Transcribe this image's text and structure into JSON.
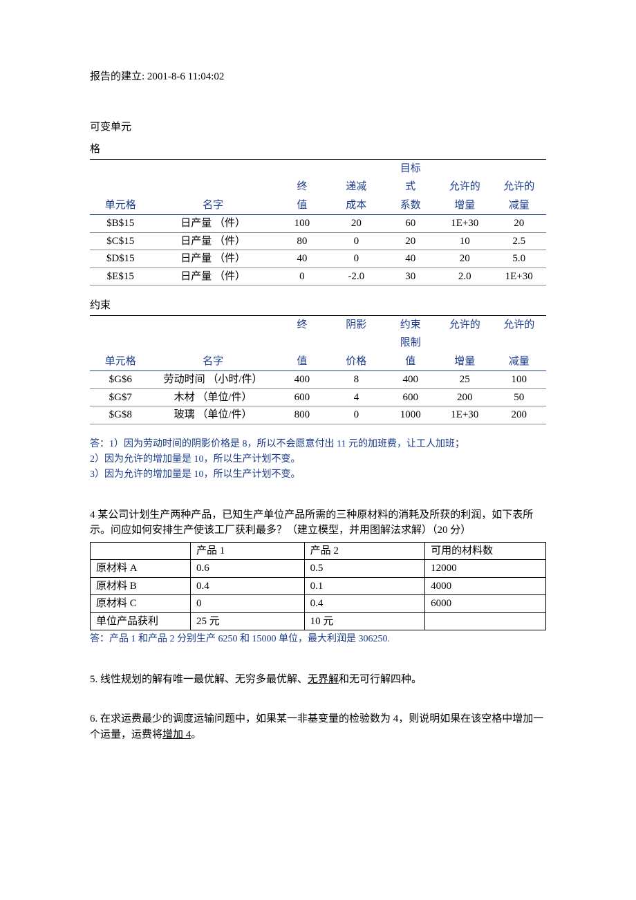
{
  "report_header": "报告的建立: 2001-8-6 11:04:02",
  "section1": {
    "label_line1": "可变单元",
    "label_line2": "格",
    "headers": {
      "cell": "单元格",
      "name": "名字",
      "final_val_l1": "终",
      "final_val_l2": "值",
      "reduced_l1": "递减",
      "reduced_l2": "成本",
      "obj_l1": "目标",
      "obj_l2": "式",
      "obj_l3": "系数",
      "allow_inc_l1": "允许的",
      "allow_inc_l2": "增量",
      "allow_dec_l1": "允许的",
      "allow_dec_l2": "减量"
    },
    "rows": [
      {
        "cell": "$B$15",
        "name": "日产量 （件）",
        "final": "100",
        "reduced": "20",
        "obj": "60",
        "inc": "1E+30",
        "dec": "20"
      },
      {
        "cell": "$C$15",
        "name": "日产量 （件）",
        "final": "80",
        "reduced": "0",
        "obj": "20",
        "inc": "10",
        "dec": "2.5"
      },
      {
        "cell": "$D$15",
        "name": "日产量 （件）",
        "final": "40",
        "reduced": "0",
        "obj": "40",
        "inc": "20",
        "dec": "5.0"
      },
      {
        "cell": "$E$15",
        "name": "日产量 （件）",
        "final": "0",
        "reduced": "-2.0",
        "obj": "30",
        "inc": "2.0",
        "dec": "1E+30"
      }
    ]
  },
  "section2": {
    "label": "约束",
    "headers": {
      "cell": "单元格",
      "name": "名字",
      "final_l1": "终",
      "final_l2": "值",
      "shadow_l1": "阴影",
      "shadow_l2": "价格",
      "constraint_l1": "约束",
      "constraint_l2": "限制",
      "constraint_l3": "值",
      "allow_inc_l1": "允许的",
      "allow_inc_l2": "增量",
      "allow_dec_l1": "允许的",
      "allow_dec_l2": "减量"
    },
    "rows": [
      {
        "cell": "$G$6",
        "name": "劳动时间 （小时/件）",
        "final": "400",
        "shadow": "8",
        "constraint": "400",
        "inc": "25",
        "dec": "100"
      },
      {
        "cell": "$G$7",
        "name": "木材 （单位/件）",
        "final": "600",
        "shadow": "4",
        "constraint": "600",
        "inc": "200",
        "dec": "50"
      },
      {
        "cell": "$G$8",
        "name": "玻璃 （单位/件）",
        "final": "800",
        "shadow": "0",
        "constraint": "1000",
        "inc": "1E+30",
        "dec": "200"
      }
    ]
  },
  "answer1": {
    "line1": "答：1）因为劳动时间的阴影价格是 8，所以不会愿意付出 11 元的加班费，让工人加班；",
    "line2": "2）因为允许的增加量是 10，所以生产计划不变。",
    "line3": "3）因为允许的增加量是 10，所以生产计划不变。"
  },
  "question4": {
    "text": "4 某公司计划生产两种产品，已知生产单位产品所需的三种原材料的消耗及所获的利润，如下表所示。问应如何安排生产使该工厂获利最多？（建立模型，并用图解法求解）（20 分）",
    "table": {
      "headers": [
        "",
        "产品 1",
        "产品 2",
        "可用的材料数"
      ],
      "rows": [
        [
          "原材料 A",
          "0.6",
          "0.5",
          "12000"
        ],
        [
          "原材料 B",
          "0.4",
          "0.1",
          "4000"
        ],
        [
          "原材料 C",
          "0",
          "0.4",
          "6000"
        ],
        [
          "单位产品获利",
          "25 元",
          "10 元",
          ""
        ]
      ],
      "col_widths": [
        "130px",
        "150px",
        "160px",
        "160px"
      ]
    },
    "answer": "答：产品 1 和产品 2 分别生产 6250 和 15000 单位，最大利润是 306250."
  },
  "question5": {
    "prefix": "5. 线性规划的解有唯一最优解、无穷多最优解、",
    "fill": "  无界解          ",
    "suffix": "和无可行解四种。"
  },
  "question6": {
    "prefix": "6. 在求运费最少的调度运输问题中，如果某一非基变量的检验数为 4，则说明如果在该空格中增加一个运量，运费将",
    "fill": "  增加 4       ",
    "suffix": "。"
  },
  "colors": {
    "header_blue": "#1a3a8a",
    "text_black": "#000000"
  }
}
